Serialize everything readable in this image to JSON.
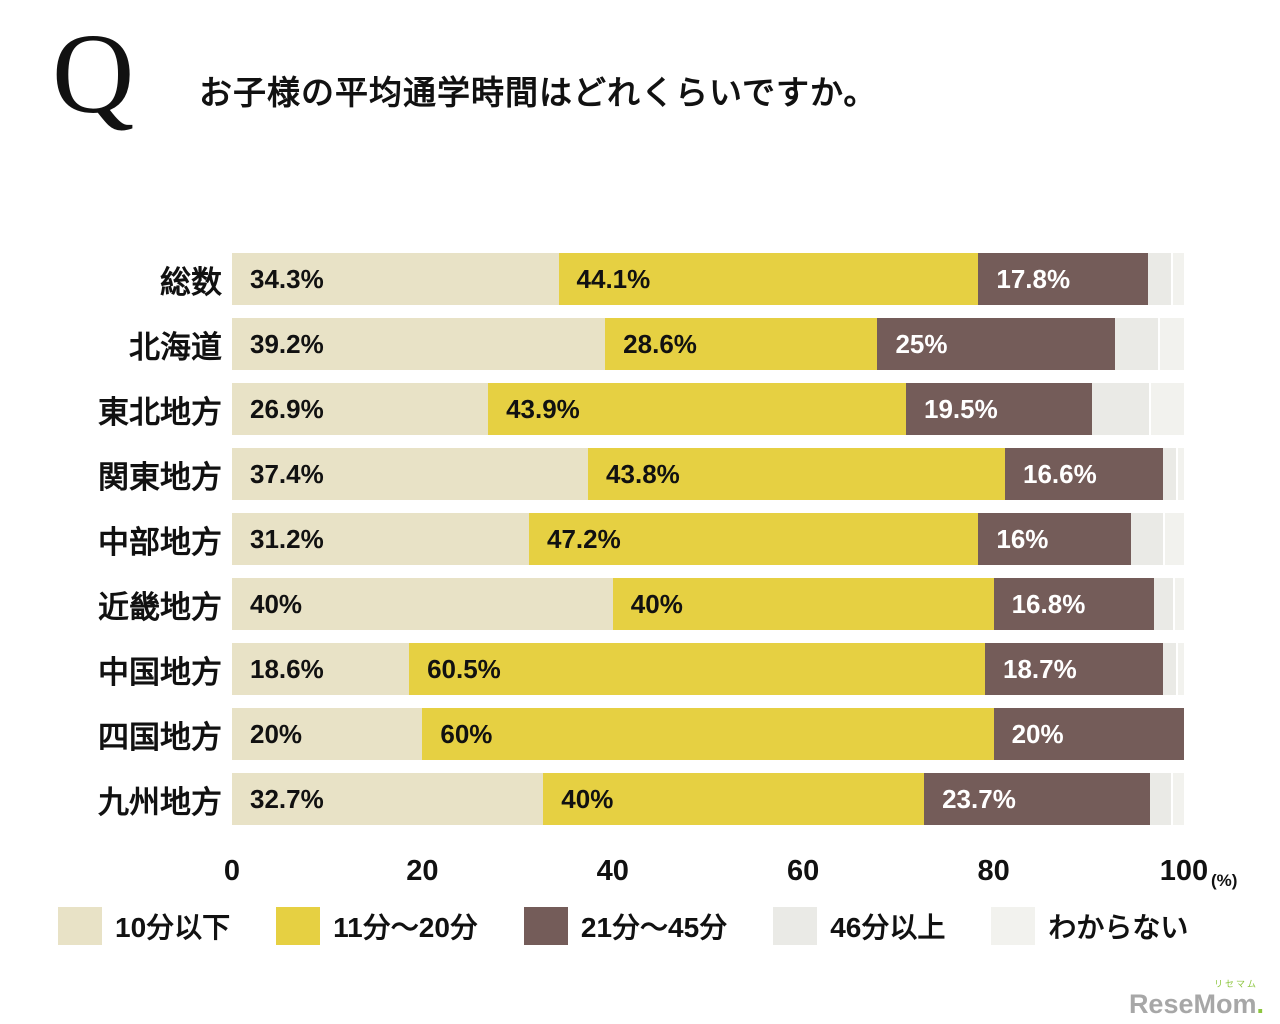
{
  "page": {
    "question_mark": "Q",
    "question_text": "お子様の平均通学時間はどれくらいですか。",
    "x_unit_label": "(%)",
    "logo_text": "ReseMom",
    "logo_dot": ".",
    "logo_ruby": "リセマム"
  },
  "colors": {
    "under10": "#e8e2c6",
    "min11to20": "#e6d042",
    "min21to45": "#745c59",
    "over46": "#eaeae6",
    "unknown": "#f2f2ee",
    "brown_label_text": "#ffffff",
    "logo_gray": "#a7a7a7",
    "logo_green": "#8dc63f"
  },
  "chart_data": {
    "type": "bar",
    "orientation": "horizontal",
    "stacked": true,
    "title": "お子様の平均通学時間はどれくらいですか。",
    "categories": [
      "総数",
      "北海道",
      "東北地方",
      "関東地方",
      "中部地方",
      "近畿地方",
      "中国地方",
      "四国地方",
      "九州地方"
    ],
    "series": [
      {
        "name": "10分以下",
        "color": "#e8e2c6",
        "values": [
          34.3,
          39.2,
          26.9,
          37.4,
          31.2,
          40,
          18.6,
          20,
          32.7
        ],
        "labels": [
          "34.3%",
          "39.2%",
          "26.9%",
          "37.4%",
          "31.2%",
          "40%",
          "18.6%",
          "20%",
          "32.7%"
        ],
        "label_color": "#111111",
        "labels_visible": true
      },
      {
        "name": "11分～20分",
        "color": "#e6d042",
        "values": [
          44.1,
          28.6,
          43.9,
          43.8,
          47.2,
          40,
          60.5,
          60,
          40
        ],
        "labels": [
          "44.1%",
          "28.6%",
          "43.9%",
          "43.8%",
          "47.2%",
          "40%",
          "60.5%",
          "60%",
          "40%"
        ],
        "label_color": "#111111",
        "labels_visible": true
      },
      {
        "name": "21分～45分",
        "color": "#745c59",
        "values": [
          17.8,
          25,
          19.5,
          16.6,
          16,
          16.8,
          18.7,
          20,
          23.7
        ],
        "labels": [
          "17.8%",
          "25%",
          "19.5%",
          "16.6%",
          "16%",
          "16.8%",
          "18.7%",
          "20%",
          "23.7%"
        ],
        "label_color": "#ffffff",
        "labels_visible": true
      },
      {
        "name": "46分以上",
        "color": "#eaeae6",
        "values": [
          2.4,
          4.5,
          6.0,
          1.4,
          3.4,
          2.0,
          1.4,
          0,
          2.2
        ],
        "labels": [
          "",
          "",
          "",
          "",
          "",
          "",
          "",
          "",
          ""
        ],
        "label_color": "#111111",
        "labels_visible": false
      },
      {
        "name": "わからない",
        "color": "#f2f2ee",
        "values": [
          1.4,
          2.7,
          3.7,
          0.8,
          2.2,
          1.2,
          0.8,
          0,
          1.4
        ],
        "labels": [
          "",
          "",
          "",
          "",
          "",
          "",
          "",
          "",
          ""
        ],
        "label_color": "#111111",
        "labels_visible": false
      }
    ],
    "xlim": [
      0,
      100
    ],
    "x_ticks": [
      0,
      20,
      40,
      60,
      80,
      100
    ],
    "x_unit": "(%)",
    "legend_position": "bottom",
    "grid": false
  }
}
